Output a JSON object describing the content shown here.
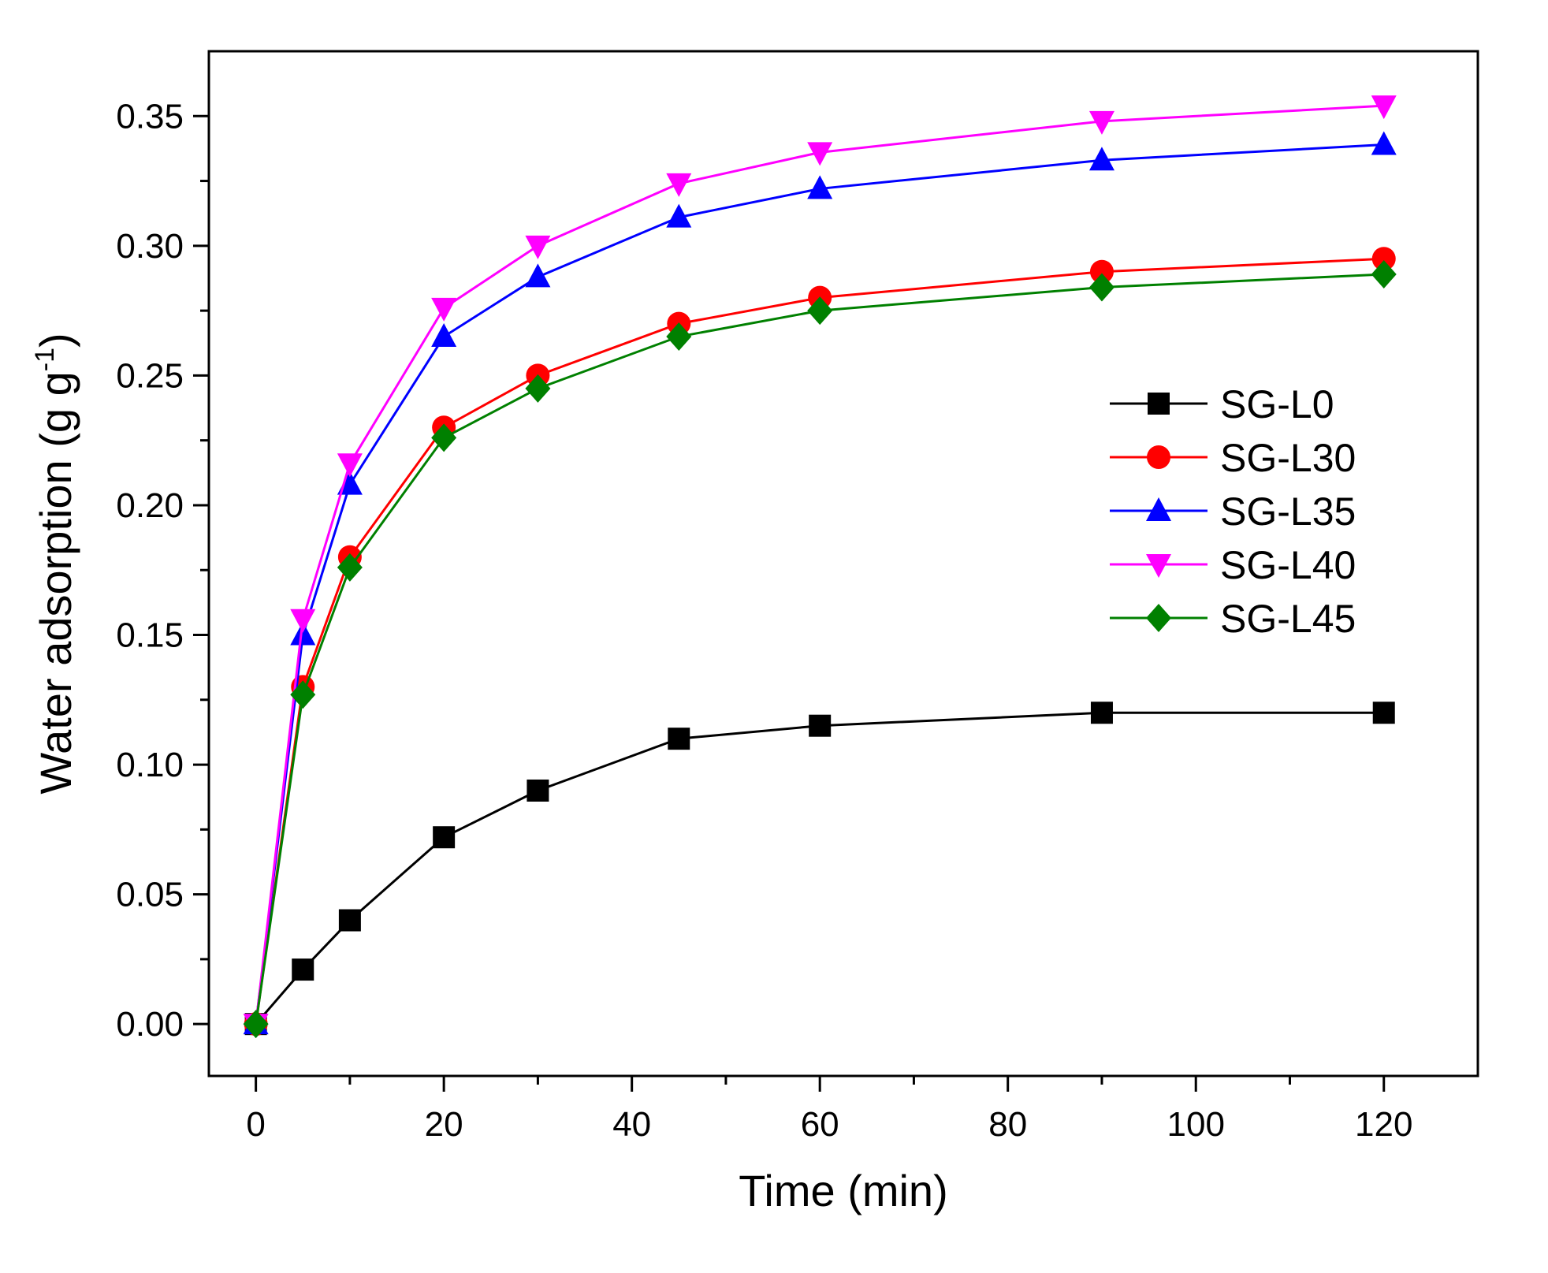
{
  "chart_data": {
    "type": "line",
    "title": "",
    "xlabel": "Time (min)",
    "ylabel": {
      "main": "Water adsorption (g g",
      "sup": "-1",
      "close": ")"
    },
    "xlim": [
      -5,
      130
    ],
    "ylim": [
      -0.02,
      0.375
    ],
    "xticks": [
      0,
      20,
      40,
      60,
      80,
      100,
      120
    ],
    "xtick_labels": [
      "0",
      "20",
      "40",
      "60",
      "80",
      "100",
      "120"
    ],
    "yticks": [
      0.0,
      0.05,
      0.1,
      0.15,
      0.2,
      0.25,
      0.3,
      0.35
    ],
    "ytick_labels": [
      "0.00",
      "0.05",
      "0.10",
      "0.15",
      "0.20",
      "0.25",
      "0.30",
      "0.35"
    ],
    "grid": false,
    "legend_position": "center-right",
    "x": [
      0,
      5,
      10,
      20,
      30,
      45,
      60,
      90,
      120
    ],
    "series": [
      {
        "name": "SG-L0",
        "color": "#000000",
        "marker": "square",
        "values": [
          0.0,
          0.021,
          0.04,
          0.072,
          0.09,
          0.11,
          0.115,
          0.12,
          0.12
        ]
      },
      {
        "name": "SG-L30",
        "color": "#ff0000",
        "marker": "circle",
        "values": [
          0.0,
          0.13,
          0.18,
          0.23,
          0.25,
          0.27,
          0.28,
          0.29,
          0.295
        ]
      },
      {
        "name": "SG-L35",
        "color": "#0000ff",
        "marker": "triangle-up",
        "values": [
          0.0,
          0.15,
          0.208,
          0.265,
          0.288,
          0.311,
          0.322,
          0.333,
          0.339
        ]
      },
      {
        "name": "SG-L40",
        "color": "#ff00ff",
        "marker": "triangle-down",
        "values": [
          0.0,
          0.156,
          0.216,
          0.276,
          0.3,
          0.324,
          0.336,
          0.348,
          0.354
        ]
      },
      {
        "name": "SG-L45",
        "color": "#008000",
        "marker": "diamond",
        "values": [
          0.0,
          0.127,
          0.176,
          0.226,
          0.245,
          0.265,
          0.275,
          0.284,
          0.289
        ]
      }
    ]
  }
}
